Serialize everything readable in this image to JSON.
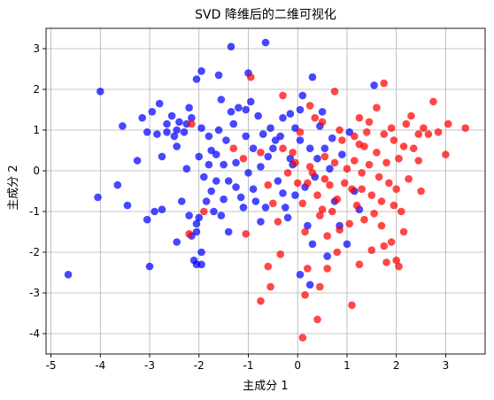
{
  "chart_data": {
    "type": "scatter",
    "title": "SVD 降维后的二维可视化",
    "xlabel": "主成分 1",
    "ylabel": "主成分 2",
    "xlim": [
      -5.1,
      3.8
    ],
    "ylim": [
      -4.5,
      3.5
    ],
    "xticks": [
      -5,
      -4,
      -3,
      -2,
      -1,
      0,
      1,
      2,
      3
    ],
    "yticks": [
      -4,
      -3,
      -2,
      -1,
      0,
      1,
      2,
      3
    ],
    "grid": true,
    "legend": "none",
    "colors": {
      "series_a": "#0000ff",
      "series_b": "#ff0000"
    },
    "series": [
      {
        "color": "#0000ff",
        "points": [
          [
            -4.65,
            -2.55
          ],
          [
            -4.0,
            1.95
          ],
          [
            -4.05,
            -0.65
          ],
          [
            -3.55,
            1.1
          ],
          [
            -3.65,
            -0.35
          ],
          [
            -3.45,
            -0.85
          ],
          [
            -3.25,
            0.25
          ],
          [
            -3.15,
            1.3
          ],
          [
            -3.05,
            0.95
          ],
          [
            -2.95,
            1.45
          ],
          [
            -2.85,
            0.9
          ],
          [
            -2.8,
            1.65
          ],
          [
            -2.75,
            0.35
          ],
          [
            -2.65,
            1.15
          ],
          [
            -2.55,
            1.35
          ],
          [
            -2.5,
            0.85
          ],
          [
            -2.45,
            1.0
          ],
          [
            -2.45,
            0.6
          ],
          [
            -2.4,
            1.2
          ],
          [
            -2.3,
            0.95
          ],
          [
            -2.2,
            1.55
          ],
          [
            -2.15,
            1.3
          ],
          [
            -3.05,
            -1.2
          ],
          [
            -2.9,
            -1.0
          ],
          [
            -3.0,
            -2.35
          ],
          [
            -2.75,
            -0.95
          ],
          [
            -2.45,
            -1.75
          ],
          [
            -2.35,
            -0.75
          ],
          [
            -2.25,
            0.05
          ],
          [
            -2.2,
            -1.1
          ],
          [
            -2.15,
            -1.6
          ],
          [
            -2.1,
            -2.2
          ],
          [
            -2.05,
            -1.5
          ],
          [
            -2.05,
            -1.3
          ],
          [
            -2.05,
            -2.3
          ],
          [
            -2.0,
            -1.15
          ],
          [
            -1.95,
            -2.0
          ],
          [
            -1.95,
            -2.3
          ],
          [
            -2.0,
            0.35
          ],
          [
            -1.95,
            1.05
          ],
          [
            -1.9,
            -0.15
          ],
          [
            -1.85,
            -0.75
          ],
          [
            -1.8,
            0.15
          ],
          [
            -1.8,
            0.85
          ],
          [
            -1.75,
            0.5
          ],
          [
            -1.7,
            -1.0
          ],
          [
            -1.65,
            -0.25
          ],
          [
            -1.65,
            0.4
          ],
          [
            -1.6,
            1.0
          ],
          [
            -1.55,
            -1.1
          ],
          [
            -1.5,
            -0.7
          ],
          [
            -1.5,
            0.15
          ],
          [
            -1.45,
            0.75
          ],
          [
            -1.4,
            -1.5
          ],
          [
            -1.4,
            -0.25
          ],
          [
            -1.35,
            1.45
          ],
          [
            -1.3,
            1.15
          ],
          [
            -1.25,
            -0.4
          ],
          [
            -1.25,
            0.2
          ],
          [
            -1.2,
            1.55
          ],
          [
            -1.15,
            -0.65
          ],
          [
            -1.1,
            -0.9
          ],
          [
            -1.05,
            1.5
          ],
          [
            -1.05,
            0.85
          ],
          [
            -1.0,
            -0.05
          ],
          [
            -0.95,
            1.7
          ],
          [
            -0.9,
            0.55
          ],
          [
            -0.9,
            -0.45
          ],
          [
            -0.85,
            -0.75
          ],
          [
            -0.8,
            1.35
          ],
          [
            -0.75,
            0.1
          ],
          [
            -0.75,
            -1.25
          ],
          [
            -0.7,
            0.9
          ],
          [
            -0.65,
            -0.9
          ],
          [
            -0.6,
            0.35
          ],
          [
            -0.55,
            1.05
          ],
          [
            -0.5,
            0.55
          ],
          [
            -0.4,
            -0.25
          ],
          [
            -0.35,
            0.85
          ],
          [
            -0.3,
            -0.55
          ],
          [
            -0.25,
            -0.9
          ],
          [
            -0.2,
            -1.15
          ],
          [
            -0.15,
            1.4
          ],
          [
            -0.1,
            0.15
          ],
          [
            -0.05,
            -0.6
          ],
          [
            0.05,
            0.75
          ],
          [
            0.1,
            1.85
          ],
          [
            0.15,
            -0.4
          ],
          [
            0.2,
            -1.35
          ],
          [
            0.25,
            0.55
          ],
          [
            0.3,
            -1.8
          ],
          [
            0.35,
            -0.15
          ],
          [
            0.45,
            1.1
          ],
          [
            0.55,
            0.55
          ],
          [
            0.6,
            -2.1
          ],
          [
            0.65,
            0.05
          ],
          [
            0.75,
            -0.75
          ],
          [
            0.85,
            -1.35
          ],
          [
            0.9,
            0.4
          ],
          [
            1.0,
            -1.8
          ],
          [
            1.05,
            0.95
          ],
          [
            1.15,
            -0.5
          ],
          [
            0.05,
            -2.55
          ],
          [
            0.25,
            -2.8
          ],
          [
            -0.65,
            3.15
          ],
          [
            -1.35,
            3.05
          ],
          [
            -2.05,
            2.25
          ],
          [
            -1.95,
            2.45
          ],
          [
            -1.6,
            2.35
          ],
          [
            -1.0,
            2.4
          ],
          [
            0.3,
            2.3
          ],
          [
            1.55,
            2.1
          ],
          [
            -2.25,
            1.15
          ],
          [
            -1.55,
            1.75
          ],
          [
            -0.3,
            1.3
          ],
          [
            -0.05,
            1.05
          ],
          [
            0.4,
            0.3
          ],
          [
            0.05,
            1.5
          ],
          [
            0.5,
            1.45
          ],
          [
            -0.45,
            0.75
          ],
          [
            -2.65,
            0.95
          ],
          [
            -1.75,
            -0.5
          ],
          [
            -0.15,
            0.3
          ],
          [
            0.7,
            0.8
          ],
          [
            1.25,
            -0.95
          ]
        ]
      },
      {
        "color": "#ff0000",
        "points": [
          [
            0.1,
            -4.1
          ],
          [
            0.2,
            -2.4
          ],
          [
            -0.75,
            -3.2
          ],
          [
            -0.55,
            -2.85
          ],
          [
            -0.6,
            -2.35
          ],
          [
            -0.35,
            -2.05
          ],
          [
            0.15,
            -3.05
          ],
          [
            0.4,
            -3.65
          ],
          [
            0.45,
            -2.85
          ],
          [
            0.6,
            -2.4
          ],
          [
            0.8,
            -2.0
          ],
          [
            1.1,
            -3.3
          ],
          [
            1.25,
            -2.3
          ],
          [
            1.5,
            -1.95
          ],
          [
            1.75,
            -1.85
          ],
          [
            1.9,
            -1.75
          ],
          [
            2.0,
            -2.2
          ],
          [
            2.15,
            -1.5
          ],
          [
            2.05,
            -2.35
          ],
          [
            1.8,
            -2.25
          ],
          [
            -1.05,
            -1.55
          ],
          [
            -1.9,
            -1.0
          ],
          [
            -2.2,
            -1.55
          ],
          [
            -2.15,
            1.15
          ],
          [
            -1.3,
            0.55
          ],
          [
            -1.1,
            0.3
          ],
          [
            -0.75,
            0.45
          ],
          [
            -0.6,
            -0.35
          ],
          [
            -0.5,
            -0.8
          ],
          [
            -0.4,
            -1.25
          ],
          [
            -0.3,
            0.55
          ],
          [
            -0.2,
            -0.05
          ],
          [
            -0.1,
            0.45
          ],
          [
            0.0,
            -0.3
          ],
          [
            0.05,
            0.95
          ],
          [
            0.1,
            -0.8
          ],
          [
            0.15,
            -1.5
          ],
          [
            0.2,
            -0.3
          ],
          [
            0.25,
            0.1
          ],
          [
            0.3,
            -0.05
          ],
          [
            0.35,
            1.3
          ],
          [
            0.4,
            -0.6
          ],
          [
            0.45,
            -1.1
          ],
          [
            0.5,
            -0.95
          ],
          [
            0.55,
            -0.2
          ],
          [
            0.6,
            -1.6
          ],
          [
            0.65,
            -0.35
          ],
          [
            0.7,
            -1.0
          ],
          [
            0.75,
            0.2
          ],
          [
            0.8,
            -0.7
          ],
          [
            0.85,
            -1.45
          ],
          [
            0.9,
            0.75
          ],
          [
            0.95,
            -0.3
          ],
          [
            1.0,
            0.05
          ],
          [
            1.05,
            -1.3
          ],
          [
            1.1,
            -0.45
          ],
          [
            1.15,
            0.25
          ],
          [
            1.2,
            -0.85
          ],
          [
            1.25,
            0.65
          ],
          [
            1.3,
            -0.45
          ],
          [
            1.35,
            -1.2
          ],
          [
            1.4,
            0.95
          ],
          [
            1.45,
            0.15
          ],
          [
            1.5,
            -0.6
          ],
          [
            1.55,
            -1.05
          ],
          [
            1.6,
            0.45
          ],
          [
            1.65,
            -0.15
          ],
          [
            1.7,
            -0.75
          ],
          [
            1.75,
            0.9
          ],
          [
            1.8,
            0.2
          ],
          [
            1.85,
            -0.3
          ],
          [
            1.9,
            1.05
          ],
          [
            1.95,
            0.75
          ],
          [
            2.0,
            -0.45
          ],
          [
            2.05,
            0.3
          ],
          [
            2.1,
            -1.0
          ],
          [
            2.15,
            0.6
          ],
          [
            2.2,
            1.15
          ],
          [
            2.25,
            -0.2
          ],
          [
            2.3,
            1.35
          ],
          [
            2.35,
            0.55
          ],
          [
            2.45,
            0.9
          ],
          [
            2.5,
            -0.5
          ],
          [
            2.55,
            1.05
          ],
          [
            2.65,
            0.9
          ],
          [
            2.75,
            1.7
          ],
          [
            2.85,
            0.95
          ],
          [
            3.0,
            0.4
          ],
          [
            3.05,
            1.15
          ],
          [
            3.4,
            1.05
          ],
          [
            1.25,
            1.3
          ],
          [
            1.45,
            1.2
          ],
          [
            1.6,
            1.55
          ],
          [
            1.75,
            2.15
          ],
          [
            0.75,
            1.95
          ],
          [
            -0.95,
            2.3
          ],
          [
            -0.3,
            1.85
          ],
          [
            0.25,
            1.6
          ],
          [
            0.5,
            1.2
          ],
          [
            0.85,
            1.0
          ],
          [
            1.15,
            0.85
          ],
          [
            1.35,
            0.6
          ],
          [
            2.45,
            0.25
          ],
          [
            1.95,
            -0.85
          ],
          [
            1.7,
            -1.35
          ],
          [
            1.3,
            -0.05
          ],
          [
            0.55,
            0.35
          ],
          [
            -0.05,
            0.2
          ]
        ]
      }
    ]
  }
}
